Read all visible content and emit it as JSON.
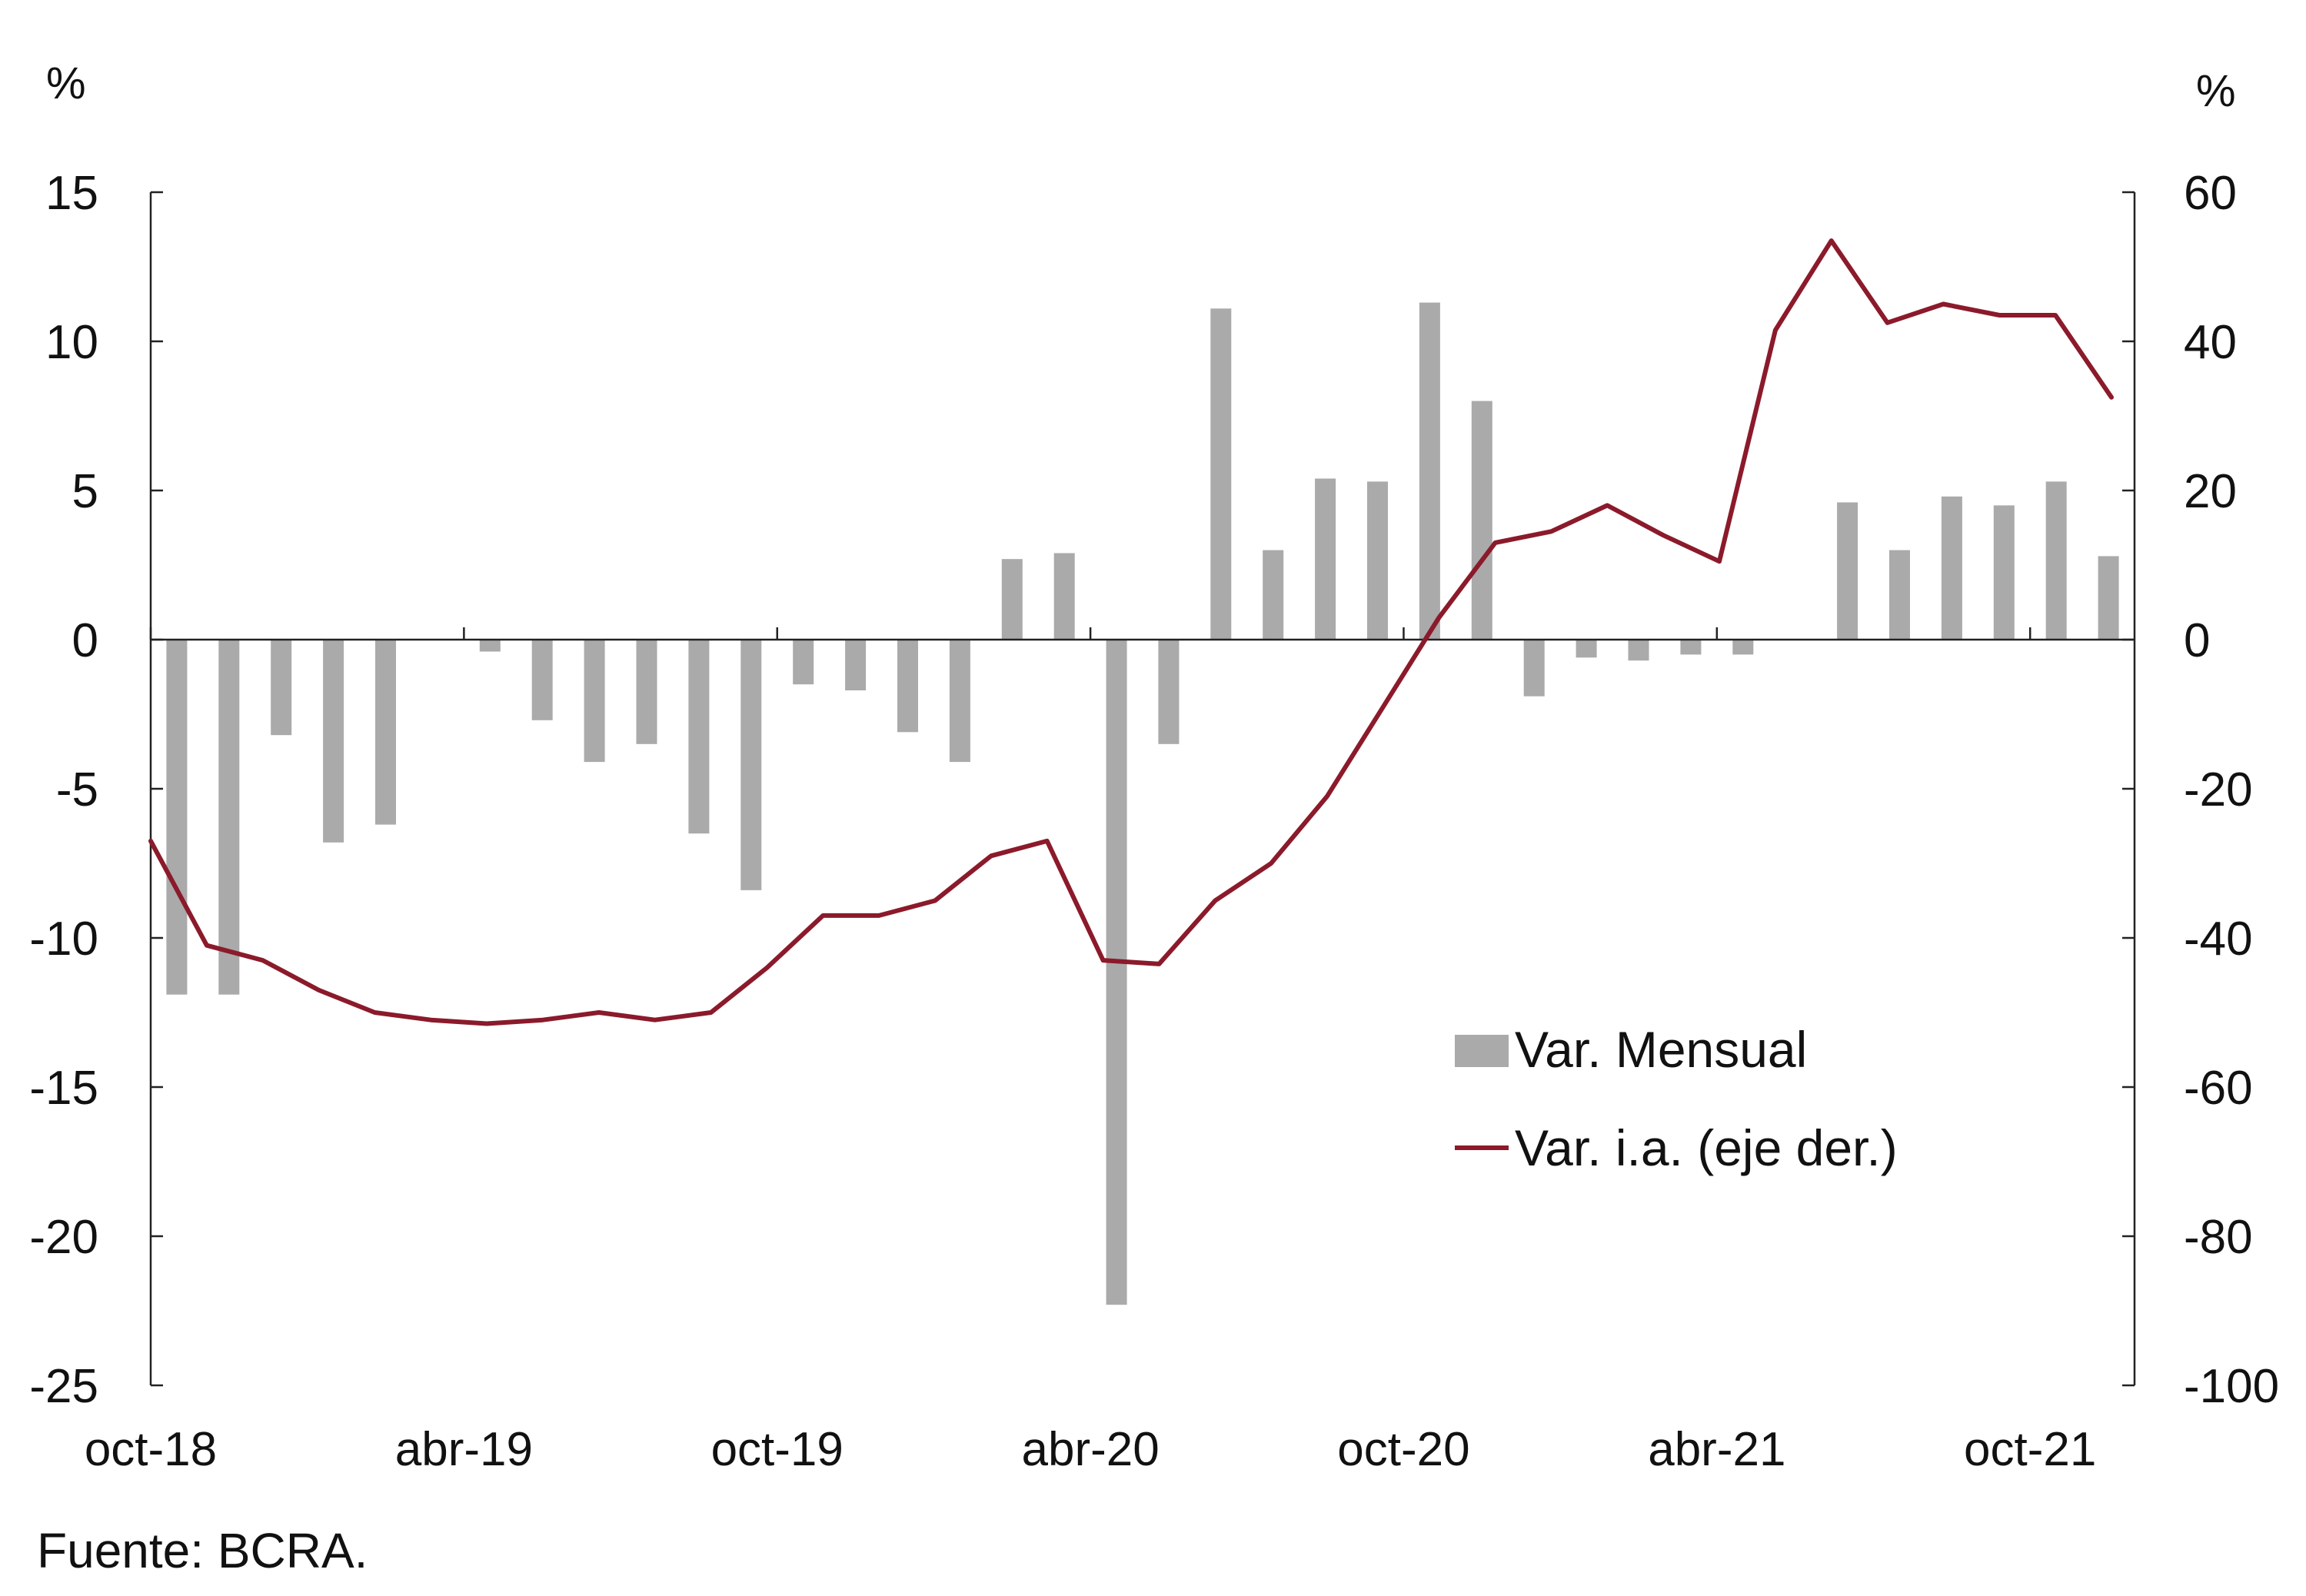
{
  "chart_data": {
    "type": "bar+line",
    "left_unit": "%",
    "right_unit": "%",
    "x_tick_labels": [
      "oct-18",
      "abr-19",
      "oct-19",
      "abr-20",
      "oct-20",
      "abr-21",
      "oct-21"
    ],
    "x_tick_indices": [
      0,
      6,
      12,
      18,
      24,
      30,
      36
    ],
    "left_axis": {
      "ylim": [
        -25,
        15
      ],
      "ticks": [
        15,
        10,
        5,
        0,
        -5,
        -10,
        -15,
        -20,
        -25
      ]
    },
    "right_axis": {
      "ylim": [
        -100,
        60
      ],
      "ticks": [
        60,
        40,
        20,
        0,
        -20,
        -40,
        -60,
        -80,
        -100
      ]
    },
    "legend": [
      {
        "label": "Var. Mensual",
        "symbol": "bar"
      },
      {
        "label": "Var. i.a. (eje der.)",
        "symbol": "line"
      }
    ],
    "series": [
      {
        "name": "Var. Mensual",
        "type": "bar",
        "axis": "left",
        "color": "#aaaaaa",
        "values": [
          -11.9,
          -11.9,
          -3.2,
          -6.8,
          -6.2,
          0.0,
          -0.4,
          -2.7,
          -4.1,
          -3.5,
          -6.5,
          -8.4,
          -1.5,
          -1.7,
          -3.1,
          -4.1,
          2.7,
          2.9,
          -22.3,
          -3.5,
          11.1,
          3.0,
          5.4,
          5.3,
          11.3,
          8.0,
          -1.9,
          -0.6,
          -0.7,
          -0.5,
          -0.5,
          0.0,
          4.6,
          3.0,
          4.8,
          4.5,
          5.3,
          2.8
        ]
      },
      {
        "name": "Var. i.a. (eje der.)",
        "type": "line",
        "axis": "right",
        "color": "#8b1a2b",
        "values": [
          -27,
          -41,
          -43,
          -47,
          -50,
          -51,
          -51.5,
          -51,
          -50,
          -51,
          -50,
          -44,
          -37,
          -37,
          -35,
          -29,
          -27,
          -43,
          -43.5,
          -35,
          -30,
          -21,
          -9,
          3,
          13,
          14.5,
          18,
          14,
          10.5,
          41.5,
          53.5,
          42.5,
          45,
          43.5,
          43.5,
          32.5
        ]
      }
    ]
  },
  "source_note": "Fuente: BCRA."
}
